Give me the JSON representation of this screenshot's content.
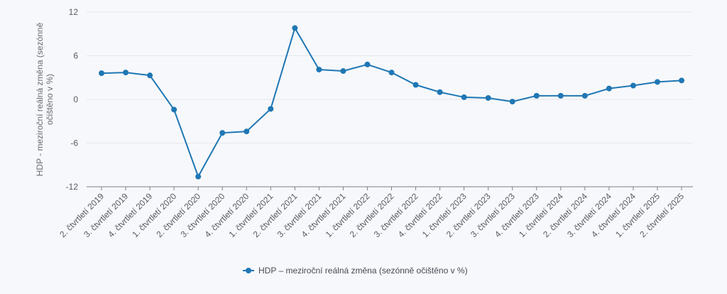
{
  "chart_data": {
    "type": "line",
    "ylabel": "HDP - meziroční reálná změna (sezónně očištěno v %)",
    "ylabel_lines": [
      "HDP - meziroční reálná změna (sezónně",
      "očištěno v %)"
    ],
    "ylim": [
      -12,
      12
    ],
    "yticks": [
      "12",
      "6",
      "0",
      "-6",
      "-12"
    ],
    "ytick_values": [
      12,
      6,
      0,
      -6,
      -12
    ],
    "grid": true,
    "legend_position": "bottom",
    "categories": [
      "2. čtvrtletí 2019",
      "3. čtvrtletí 2019",
      "4. čtvrtletí 2019",
      "1. čtvrtletí 2020",
      "2. čtvrtletí 2020",
      "3. čtvrtletí 2020",
      "4. čtvrtletí 2020",
      "1. čtvrtletí 2021",
      "2. čtvrtletí 2021",
      "3. čtvrtletí 2021",
      "4. čtvrtletí 2021",
      "1. čtvrtletí 2022",
      "2. čtvrtletí 2022",
      "3. čtvrtletí 2022",
      "4. čtvrtletí 2022",
      "1. čtvrtletí 2023",
      "2. čtvrtletí 2023",
      "3. čtvrtletí 2023",
      "4. čtvrtletí 2023",
      "1. čtvrtletí 2024",
      "2. čtvrtletí 2024",
      "3. čtvrtletí 2024",
      "4. čtvrtletí 2024",
      "1. čtvrtletí 2025",
      "2. čtvrtletí 2025"
    ],
    "series": [
      {
        "name": "HDP – meziroční reálná změna (sezónně očištěno v %)",
        "color": "#1f77b4",
        "values": [
          3.6,
          3.7,
          3.3,
          -1.4,
          -10.6,
          -4.6,
          -4.4,
          -1.3,
          9.8,
          4.1,
          3.9,
          4.8,
          3.7,
          2.0,
          1.0,
          0.3,
          0.2,
          -0.3,
          0.5,
          0.5,
          0.5,
          1.5,
          1.9,
          2.4,
          2.6
        ]
      }
    ]
  }
}
